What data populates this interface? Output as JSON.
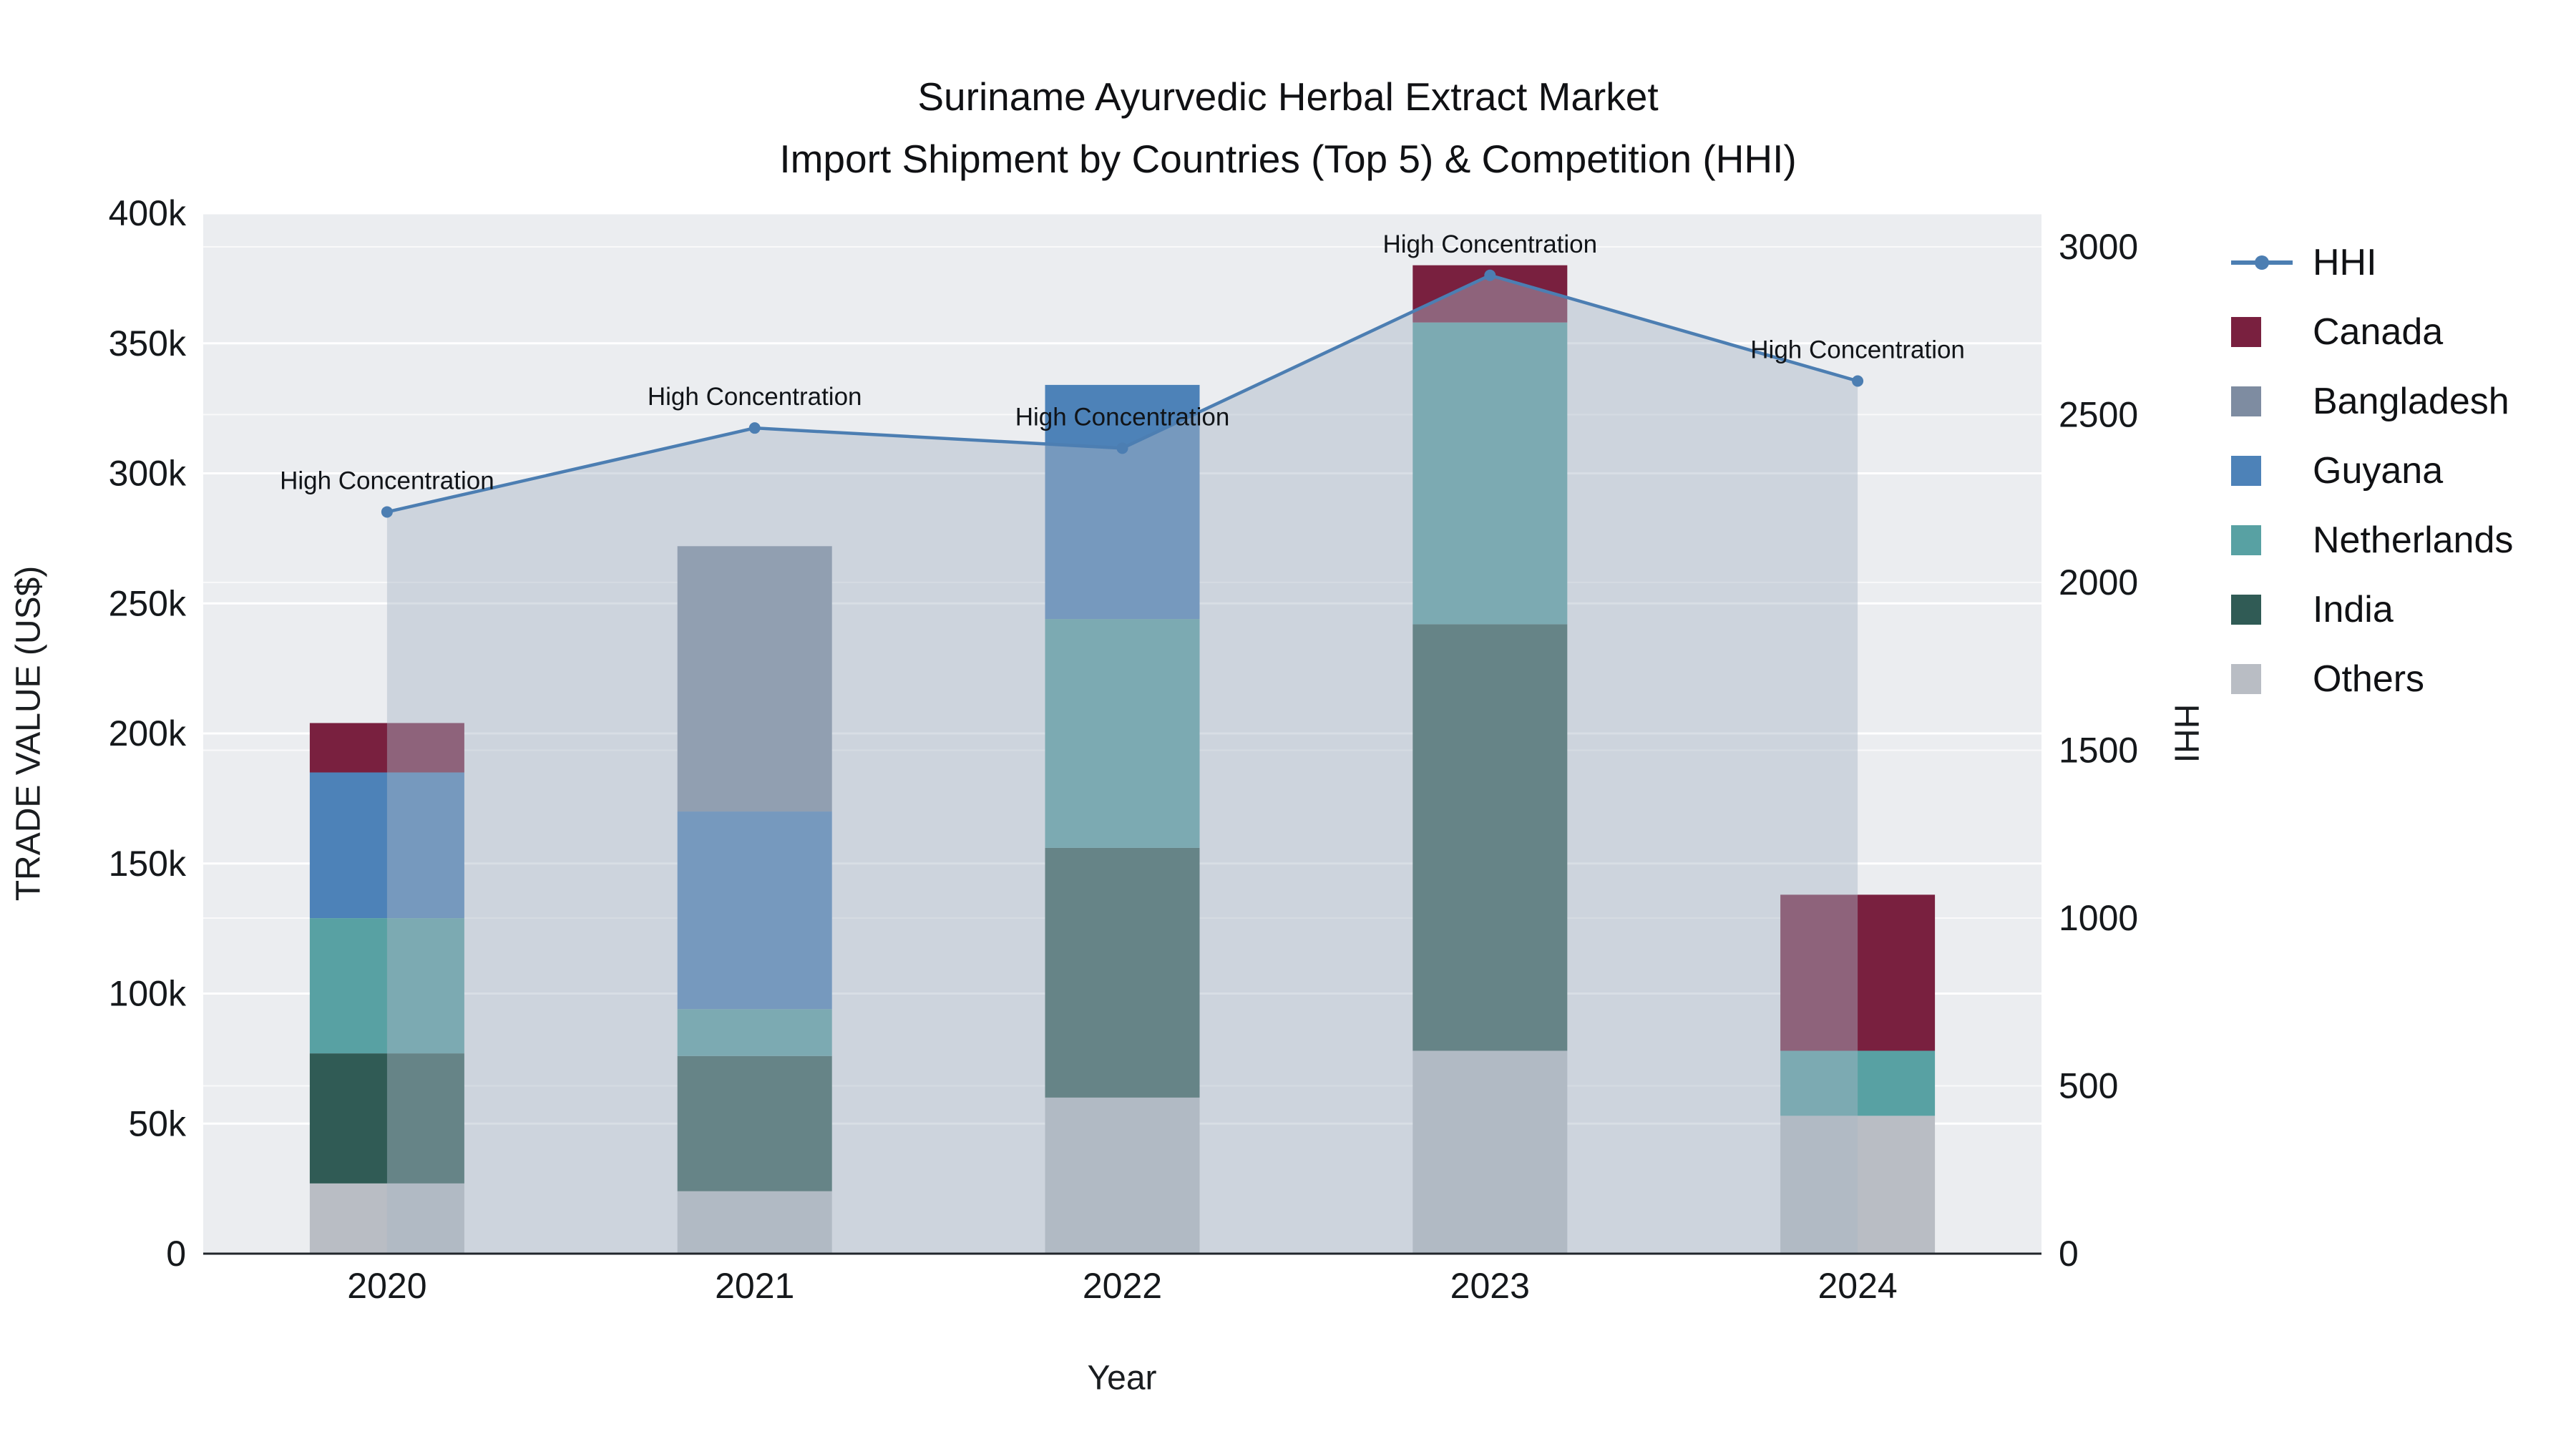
{
  "title": {
    "line1": "Suriname Ayurvedic Herbal Extract Market",
    "line2": "Import Shipment by Countries (Top 5) & Competition (HHI)"
  },
  "axes": {
    "x_title": "Year",
    "y_left_title": "TRADE VALUE (US$)",
    "y_right_title": "HHI"
  },
  "legend": {
    "items": [
      {
        "label": "HHI",
        "symbol": "line",
        "color": "#4c7eb2"
      },
      {
        "label": "Canada",
        "symbol": "square",
        "color": "#79203f"
      },
      {
        "label": "Bangladesh",
        "symbol": "square",
        "color": "#7e8ca1"
      },
      {
        "label": "Guyana",
        "symbol": "square",
        "color": "#4d82b8"
      },
      {
        "label": "Netherlands",
        "symbol": "square",
        "color": "#58a1a3"
      },
      {
        "label": "India",
        "symbol": "square",
        "color": "#305b55"
      },
      {
        "label": "Others",
        "symbol": "square",
        "color": "#b9bdc4"
      }
    ]
  },
  "chart_data": {
    "type": "bar",
    "subtype": "stacked-bars-with-line-area",
    "title": "Suriname Ayurvedic Herbal Extract Market — Import Shipment by Countries (Top 5) & Competition (HHI)",
    "xlabel": "Year",
    "categories": [
      "2020",
      "2021",
      "2022",
      "2023",
      "2024"
    ],
    "bar_series": [
      {
        "name": "Others",
        "color": "#b9bdc4",
        "values": [
          27000,
          24000,
          60000,
          78000,
          53000
        ]
      },
      {
        "name": "India",
        "color": "#305b55",
        "values": [
          50000,
          52000,
          96000,
          164000,
          0
        ]
      },
      {
        "name": "Netherlands",
        "color": "#58a1a3",
        "values": [
          52000,
          18000,
          88000,
          116000,
          25000
        ]
      },
      {
        "name": "Guyana",
        "color": "#4d82b8",
        "values": [
          56000,
          76000,
          90000,
          0,
          0
        ]
      },
      {
        "name": "Bangladesh",
        "color": "#7e8ca1",
        "values": [
          0,
          102000,
          0,
          0,
          0
        ]
      },
      {
        "name": "Canada",
        "color": "#79203f",
        "values": [
          19000,
          0,
          0,
          22000,
          60000
        ]
      }
    ],
    "bar_totals": [
      204000,
      272000,
      334000,
      380000,
      138000
    ],
    "line_series": {
      "name": "HHI",
      "color": "#4c7eb2",
      "area_fill": "rgba(168,181,198,0.45)",
      "values": [
        2210,
        2460,
        2400,
        2915,
        2600
      ],
      "annotations": [
        "High Concentration",
        "High Concentration",
        "High Concentration",
        "High Concentration",
        "High Concentration"
      ]
    },
    "y_left": {
      "label": "TRADE VALUE (US$)",
      "range": [
        0,
        400000
      ],
      "tick_values": [
        0,
        50000,
        100000,
        150000,
        200000,
        250000,
        300000,
        350000,
        400000
      ],
      "tick_labels": [
        "0",
        "50k",
        "100k",
        "150k",
        "200k",
        "250k",
        "300k",
        "350k",
        "400k"
      ]
    },
    "y_right": {
      "label": "HHI",
      "range": [
        0,
        3100
      ],
      "tick_values": [
        0,
        500,
        1000,
        1500,
        2000,
        2500,
        3000
      ],
      "tick_labels": [
        "0",
        "500",
        "1000",
        "1500",
        "2000",
        "2500",
        "3000"
      ]
    },
    "legend_position": "right",
    "grid": true
  }
}
